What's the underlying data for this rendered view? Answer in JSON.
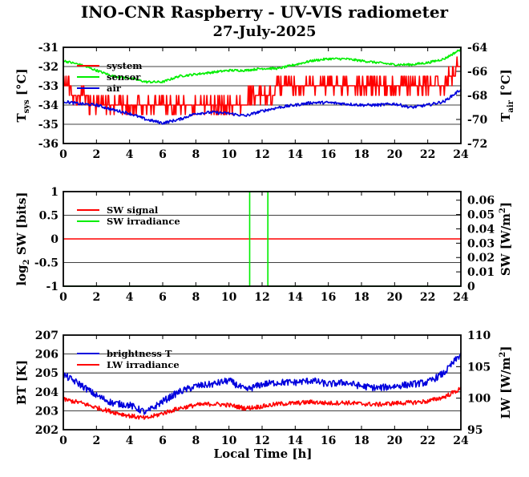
{
  "title": "INO-CNR Raspberry - UV-VIS radiometer",
  "date": "27-July-2025",
  "colors": {
    "red": "#ff0000",
    "green": "#00ee00",
    "blue": "#0000dd",
    "grid": "#000000"
  },
  "chart_data": [
    {
      "type": "line",
      "ylabel_left": "T",
      "ylabel_left_sub": "sys",
      "ylabel_left_unit": "[°C]",
      "ylabel_right": "T",
      "ylabel_right_sub": "air",
      "ylabel_right_unit": "[°C]",
      "xlim": [
        0,
        24
      ],
      "ylim_left": [
        -36,
        -31
      ],
      "ylim_right": [
        -72,
        -64
      ],
      "xticks": [
        "0",
        "2",
        "4",
        "6",
        "8",
        "10",
        "12",
        "14",
        "16",
        "18",
        "20",
        "22",
        "24"
      ],
      "yticks_left": [
        "-31",
        "-32",
        "-33",
        "-34",
        "-35",
        "-36"
      ],
      "yticks_right": [
        "-64",
        "-66",
        "-68",
        "-70",
        "-72"
      ],
      "legend": [
        "system",
        "sensor",
        "air"
      ],
      "series": [
        {
          "name": "system",
          "axis": "left",
          "color": "#ff0000",
          "x": [
            0,
            1,
            2,
            3,
            4,
            5,
            6,
            7,
            8,
            9,
            10,
            11,
            12,
            13,
            14,
            15,
            16,
            17,
            18,
            19,
            20,
            21,
            22,
            23,
            23.5,
            24
          ],
          "y": [
            -33.0,
            -33.5,
            -34.0,
            -34.0,
            -34.0,
            -34.0,
            -34.2,
            -34.0,
            -34.0,
            -34.0,
            -34.0,
            -33.8,
            -33.5,
            -33.2,
            -33.0,
            -33.0,
            -33.0,
            -33.0,
            -33.0,
            -33.0,
            -33.0,
            -33.2,
            -33.0,
            -33.0,
            -32.5,
            -31.8
          ]
        },
        {
          "name": "sensor",
          "axis": "left",
          "color": "#00ee00",
          "x": [
            0,
            1,
            2,
            3,
            4,
            5,
            6,
            7,
            8,
            9,
            10,
            11,
            12,
            13,
            14,
            15,
            16,
            17,
            18,
            19,
            20,
            21,
            22,
            23,
            24
          ],
          "y": [
            -31.7,
            -31.9,
            -32.2,
            -32.5,
            -32.6,
            -32.8,
            -32.8,
            -32.5,
            -32.4,
            -32.3,
            -32.2,
            -32.2,
            -32.1,
            -32.1,
            -31.9,
            -31.7,
            -31.6,
            -31.6,
            -31.7,
            -31.8,
            -31.9,
            -31.9,
            -31.8,
            -31.6,
            -31.1
          ]
        },
        {
          "name": "air",
          "axis": "right",
          "color": "#0000dd",
          "x": [
            0,
            1,
            2,
            3,
            4,
            5,
            6,
            7,
            8,
            9,
            10,
            11,
            12,
            13,
            14,
            15,
            16,
            17,
            18,
            19,
            20,
            21,
            22,
            23,
            24
          ],
          "y": [
            -68.5,
            -68.7,
            -68.8,
            -69.2,
            -69.5,
            -70.0,
            -70.3,
            -70.0,
            -69.5,
            -69.4,
            -69.5,
            -69.7,
            -69.3,
            -69.0,
            -68.8,
            -68.6,
            -68.6,
            -68.7,
            -68.8,
            -68.8,
            -68.7,
            -69.0,
            -68.8,
            -68.5,
            -67.5
          ]
        }
      ]
    },
    {
      "type": "line",
      "ylabel_left": "log",
      "ylabel_left_sub": "2",
      "ylabel_left_unit": "SW [bits]",
      "ylabel_right": "SW [W/m",
      "ylabel_right_sup": "2",
      "ylabel_right_end": "]",
      "xlim": [
        0,
        24
      ],
      "ylim_left": [
        -1,
        1
      ],
      "ylim_right": [
        0,
        0.066
      ],
      "xticks": [
        "0",
        "2",
        "4",
        "6",
        "8",
        "10",
        "12",
        "14",
        "16",
        "18",
        "20",
        "22",
        "24"
      ],
      "yticks_left": [
        "1",
        "0.5",
        "0",
        "-0.5",
        "-1"
      ],
      "yticks_right": [
        "0.06",
        "0.05",
        "0.04",
        "0.03",
        "0.02",
        "0.01",
        "0"
      ],
      "legend": [
        "SW signal",
        "SW irradiance"
      ],
      "series": [
        {
          "name": "SW signal",
          "axis": "left",
          "color": "#ff0000",
          "x": [
            0,
            24
          ],
          "y": [
            0,
            0
          ]
        },
        {
          "name": "SW irradiance",
          "axis": "right",
          "color": "#00ee00",
          "x": [
            0,
            11.25,
            11.25,
            12.35,
            12.35,
            24
          ],
          "y": [
            0,
            0,
            0.066,
            0.066,
            0,
            0
          ]
        }
      ]
    },
    {
      "type": "line",
      "ylabel_left": "BT [K]",
      "ylabel_right": "LW [W/m",
      "ylabel_right_sup": "2",
      "ylabel_right_end": "]",
      "xlabel": "Local Time [h]",
      "xlim": [
        0,
        24
      ],
      "ylim_left": [
        202,
        207
      ],
      "ylim_right": [
        95,
        110
      ],
      "xticks": [
        "0",
        "2",
        "4",
        "6",
        "8",
        "10",
        "12",
        "14",
        "16",
        "18",
        "20",
        "22",
        "24"
      ],
      "yticks_left": [
        "207",
        "206",
        "205",
        "204",
        "203",
        "202"
      ],
      "yticks_right": [
        "110",
        "105",
        "100",
        "95"
      ],
      "legend": [
        "brightness T",
        "LW irradiance"
      ],
      "series": [
        {
          "name": "brightness T",
          "axis": "left",
          "color": "#0000dd",
          "x": [
            0,
            1,
            2,
            3,
            4,
            5,
            6,
            7,
            8,
            9,
            10,
            11,
            12,
            13,
            14,
            15,
            16,
            17,
            18,
            19,
            20,
            21,
            22,
            23,
            24
          ],
          "y": [
            204.9,
            204.4,
            203.8,
            203.4,
            203.3,
            202.9,
            203.5,
            204.0,
            204.3,
            204.4,
            204.6,
            204.1,
            204.4,
            204.5,
            204.5,
            204.6,
            204.4,
            204.5,
            204.3,
            204.2,
            204.3,
            204.4,
            204.5,
            205.0,
            206.0
          ]
        },
        {
          "name": "LW irradiance",
          "axis": "right",
          "color": "#ff0000",
          "x": [
            0,
            1,
            2,
            3,
            4,
            5,
            6,
            7,
            8,
            9,
            10,
            11,
            12,
            13,
            14,
            15,
            16,
            17,
            18,
            19,
            20,
            21,
            22,
            23,
            24
          ],
          "y": [
            99.8,
            99.3,
            98.5,
            97.8,
            97.2,
            96.8,
            97.6,
            98.4,
            98.9,
            99.1,
            98.9,
            98.4,
            98.7,
            99.1,
            99.2,
            99.4,
            99.2,
            99.3,
            99.1,
            99.0,
            99.2,
            99.3,
            99.5,
            100.2,
            101.5
          ]
        }
      ]
    }
  ]
}
